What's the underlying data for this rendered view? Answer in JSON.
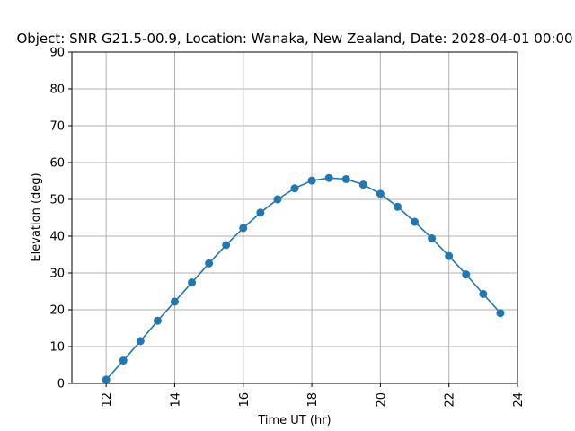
{
  "chart_data": {
    "type": "line",
    "title": "Object: SNR G21.5-00.9,  Location: Wanaka, New Zealand, Date: 2028-04-01 00:00",
    "xlabel": "Time UT (hr)",
    "ylabel": "Elevation (deg)",
    "xlim": [
      11,
      24
    ],
    "ylim": [
      0,
      90
    ],
    "xticks": [
      12,
      14,
      16,
      18,
      20,
      22,
      24
    ],
    "yticks": [
      0,
      10,
      20,
      30,
      40,
      50,
      60,
      70,
      80,
      90
    ],
    "grid": true,
    "color": "#1f77b4",
    "series": [
      {
        "x": [
          12.0,
          12.5,
          13.0,
          13.5,
          14.0,
          14.5,
          15.0,
          15.5,
          16.0,
          16.5,
          17.0,
          17.5,
          18.0,
          18.5,
          19.0,
          19.5,
          20.0,
          20.5,
          21.0,
          21.5,
          22.0,
          22.5,
          23.0,
          23.5
        ],
        "y": [
          1.0,
          6.2,
          11.5,
          17.0,
          22.2,
          27.4,
          32.6,
          37.6,
          42.2,
          46.4,
          50.0,
          53.0,
          55.1,
          55.8,
          55.5,
          54.0,
          51.5,
          48.0,
          43.9,
          39.4,
          34.6,
          29.6,
          24.3,
          19.1
        ]
      }
    ]
  }
}
